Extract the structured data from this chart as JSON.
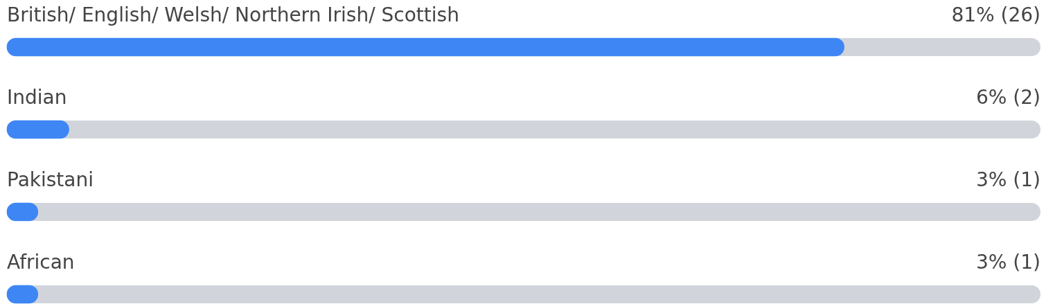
{
  "chart_data": {
    "type": "bar",
    "orientation": "horizontal",
    "categories": [
      "British/ English/ Welsh/ Northern Irish/ Scottish",
      "Indian",
      "Pakistani",
      "African"
    ],
    "values": [
      81,
      6,
      3,
      3
    ],
    "value_labels": [
      "81% (26)",
      "6% (2)",
      "3% (1)",
      "3% (1)"
    ],
    "color": "#3f86f5",
    "xlim": [
      0,
      100
    ],
    "tick_labels": false
  }
}
